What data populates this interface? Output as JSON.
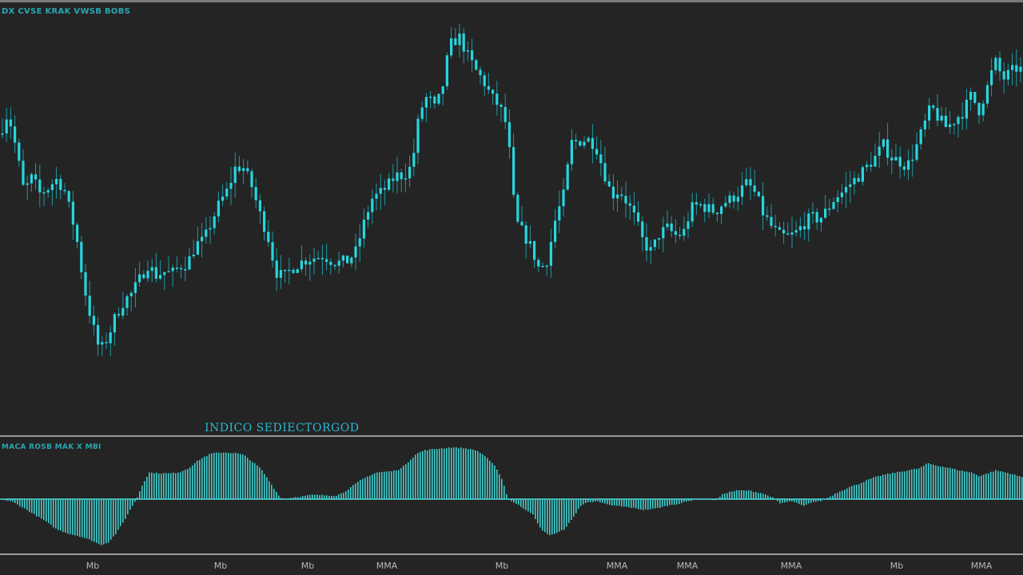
{
  "header": {
    "main_label": "DX CVSE KRAK VWSB BOBS"
  },
  "overlay": {
    "indicator_title": "INDICO SEDIECTORGOD"
  },
  "subpane": {
    "label": "MACA ROSB MAK X MBI"
  },
  "colors": {
    "background": "#242424",
    "candle": "#27d6df",
    "wick": "#1c9aa3",
    "histogram": "#3fcdcd",
    "divider": "#9a9a9a",
    "zero_line": "#4fd8d8"
  },
  "chart_data": [
    {
      "type": "candlestick",
      "title": "DX CVSE KRAK VWSB BOBS",
      "ylim": [
        0,
        100
      ],
      "grid": false,
      "close_path": [
        [
          0,
          72.0
        ],
        [
          10,
          78.0
        ],
        [
          20,
          68.0
        ],
        [
          30,
          56.0
        ],
        [
          40,
          60.0
        ],
        [
          50,
          55.5
        ],
        [
          60,
          57.0
        ],
        [
          70,
          59.5
        ],
        [
          80,
          57.0
        ],
        [
          95,
          44.5
        ],
        [
          105,
          30.0
        ],
        [
          115,
          20.0
        ],
        [
          125,
          12.0
        ],
        [
          135,
          16.0
        ],
        [
          145,
          22.0
        ],
        [
          155,
          26.0
        ],
        [
          165,
          28.0
        ],
        [
          175,
          32.0
        ],
        [
          185,
          36.0
        ],
        [
          195,
          33.0
        ],
        [
          205,
          34.0
        ],
        [
          215,
          33.5
        ],
        [
          225,
          35.5
        ],
        [
          235,
          36.5
        ],
        [
          245,
          41.5
        ],
        [
          255,
          42.5
        ],
        [
          265,
          48.0
        ],
        [
          275,
          53.0
        ],
        [
          285,
          56.5
        ],
        [
          295,
          63.0
        ],
        [
          305,
          62.5
        ],
        [
          315,
          57.5
        ],
        [
          325,
          50.0
        ],
        [
          335,
          44.0
        ],
        [
          345,
          34.0
        ],
        [
          355,
          32.5
        ],
        [
          365,
          35.0
        ],
        [
          375,
          36.5
        ],
        [
          385,
          37.5
        ],
        [
          395,
          38.0
        ],
        [
          405,
          38.5
        ],
        [
          415,
          37.0
        ],
        [
          425,
          36.5
        ],
        [
          435,
          37.0
        ],
        [
          445,
          39.5
        ],
        [
          455,
          47.0
        ],
        [
          465,
          54.0
        ],
        [
          475,
          55.5
        ],
        [
          485,
          57.5
        ],
        [
          495,
          60.5
        ],
        [
          505,
          60.5
        ],
        [
          515,
          63.0
        ],
        [
          520,
          70.0
        ],
        [
          525,
          78.0
        ],
        [
          535,
          82.5
        ],
        [
          545,
          78.5
        ],
        [
          555,
          86.0
        ],
        [
          560,
          93.0
        ],
        [
          565,
          97.0
        ],
        [
          575,
          98.5
        ],
        [
          585,
          93.5
        ],
        [
          595,
          89.5
        ],
        [
          605,
          86.5
        ],
        [
          615,
          82.0
        ],
        [
          625,
          79.5
        ],
        [
          635,
          73.5
        ],
        [
          640,
          60.0
        ],
        [
          645,
          48.0
        ],
        [
          655,
          44.5
        ],
        [
          665,
          40.5
        ],
        [
          675,
          34.5
        ],
        [
          685,
          37.5
        ],
        [
          695,
          48.5
        ],
        [
          705,
          55.0
        ],
        [
          715,
          69.5
        ],
        [
          725,
          70.0
        ],
        [
          735,
          70.5
        ],
        [
          745,
          69.0
        ],
        [
          755,
          62.0
        ],
        [
          765,
          55.0
        ],
        [
          775,
          56.5
        ],
        [
          785,
          53.0
        ],
        [
          795,
          48.5
        ],
        [
          805,
          42.0
        ],
        [
          815,
          39.5
        ],
        [
          825,
          44.5
        ],
        [
          835,
          46.0
        ],
        [
          845,
          44.0
        ],
        [
          855,
          44.5
        ],
        [
          865,
          51.5
        ],
        [
          875,
          52.5
        ],
        [
          885,
          51.5
        ],
        [
          895,
          50.5
        ],
        [
          905,
          53.0
        ],
        [
          915,
          54.0
        ],
        [
          925,
          56.0
        ],
        [
          935,
          58.5
        ],
        [
          945,
          55.5
        ],
        [
          955,
          50.0
        ],
        [
          965,
          46.5
        ],
        [
          975,
          44.0
        ],
        [
          985,
          43.5
        ],
        [
          995,
          44.5
        ],
        [
          1005,
          47.0
        ],
        [
          1015,
          49.0
        ],
        [
          1025,
          48.5
        ],
        [
          1035,
          51.0
        ],
        [
          1045,
          54.5
        ],
        [
          1055,
          56.0
        ],
        [
          1065,
          58.5
        ],
        [
          1075,
          60.5
        ],
        [
          1085,
          63.0
        ],
        [
          1095,
          65.5
        ],
        [
          1105,
          69.0
        ],
        [
          1115,
          65.5
        ],
        [
          1125,
          64.5
        ],
        [
          1135,
          63.0
        ],
        [
          1145,
          67.5
        ],
        [
          1155,
          73.5
        ],
        [
          1165,
          79.5
        ],
        [
          1175,
          76.0
        ],
        [
          1185,
          73.5
        ],
        [
          1195,
          76.0
        ],
        [
          1205,
          78.0
        ],
        [
          1215,
          82.5
        ],
        [
          1225,
          78.5
        ],
        [
          1235,
          84.5
        ],
        [
          1245,
          92.0
        ],
        [
          1255,
          87.0
        ],
        [
          1265,
          89.0
        ],
        [
          1272,
          90.0
        ],
        [
          1280,
          89.5
        ]
      ]
    },
    {
      "type": "histogram",
      "title": "MACA ROSB MAK X MBI",
      "ylim": [
        -100,
        100
      ],
      "values_path": [
        [
          0,
          0
        ],
        [
          15,
          -4
        ],
        [
          25,
          -10
        ],
        [
          40,
          -20
        ],
        [
          55,
          -30
        ],
        [
          70,
          -42
        ],
        [
          85,
          -48
        ],
        [
          100,
          -52
        ],
        [
          115,
          -58
        ],
        [
          125,
          -64
        ],
        [
          135,
          -60
        ],
        [
          145,
          -47
        ],
        [
          155,
          -29
        ],
        [
          165,
          -9
        ],
        [
          170,
          0
        ],
        [
          178,
          22
        ],
        [
          186,
          37
        ],
        [
          200,
          36
        ],
        [
          215,
          36
        ],
        [
          225,
          38
        ],
        [
          235,
          43
        ],
        [
          245,
          52
        ],
        [
          255,
          59
        ],
        [
          265,
          64
        ],
        [
          280,
          65
        ],
        [
          295,
          64
        ],
        [
          305,
          61
        ],
        [
          315,
          52
        ],
        [
          325,
          43
        ],
        [
          335,
          27
        ],
        [
          345,
          10
        ],
        [
          352,
          0
        ],
        [
          390,
          6
        ],
        [
          420,
          5
        ],
        [
          430,
          10
        ],
        [
          440,
          18
        ],
        [
          450,
          26
        ],
        [
          460,
          32
        ],
        [
          470,
          37
        ],
        [
          480,
          38
        ],
        [
          490,
          39
        ],
        [
          500,
          42
        ],
        [
          510,
          52
        ],
        [
          520,
          63
        ],
        [
          530,
          68
        ],
        [
          545,
          70
        ],
        [
          565,
          72
        ],
        [
          580,
          71
        ],
        [
          595,
          68
        ],
        [
          605,
          61
        ],
        [
          612,
          53
        ],
        [
          620,
          44
        ],
        [
          628,
          26
        ],
        [
          635,
          0
        ],
        [
          665,
          -20
        ],
        [
          675,
          -40
        ],
        [
          685,
          -50
        ],
        [
          695,
          -48
        ],
        [
          705,
          -42
        ],
        [
          715,
          -28
        ],
        [
          725,
          -10
        ],
        [
          735,
          -4
        ],
        [
          745,
          -3
        ],
        [
          760,
          -8
        ],
        [
          775,
          -10
        ],
        [
          790,
          -12
        ],
        [
          805,
          -15
        ],
        [
          820,
          -13
        ],
        [
          835,
          -9
        ],
        [
          850,
          -6
        ],
        [
          860,
          -3
        ],
        [
          870,
          0
        ],
        [
          895,
          -1
        ],
        [
          905,
          8
        ],
        [
          920,
          12
        ],
        [
          935,
          12
        ],
        [
          950,
          9
        ],
        [
          965,
          3
        ],
        [
          975,
          -6
        ],
        [
          990,
          -3
        ],
        [
          1005,
          -10
        ],
        [
          1015,
          -4
        ],
        [
          1025,
          -3
        ],
        [
          1035,
          2
        ],
        [
          1045,
          8
        ],
        [
          1060,
          16
        ],
        [
          1075,
          22
        ],
        [
          1090,
          29
        ],
        [
          1105,
          34
        ],
        [
          1120,
          37
        ],
        [
          1135,
          40
        ],
        [
          1150,
          43
        ],
        [
          1160,
          50
        ],
        [
          1170,
          47
        ],
        [
          1185,
          44
        ],
        [
          1200,
          40
        ],
        [
          1215,
          37
        ],
        [
          1225,
          32
        ],
        [
          1235,
          36
        ],
        [
          1245,
          40
        ],
        [
          1255,
          38
        ],
        [
          1265,
          35
        ],
        [
          1280,
          30
        ]
      ]
    }
  ],
  "x_axis": {
    "tick_labels": [
      "Mb",
      "Mb",
      "Mb",
      "MMA",
      "Mb",
      "MMA",
      "MMA",
      "MMA",
      "Mb",
      "MMA"
    ]
  }
}
